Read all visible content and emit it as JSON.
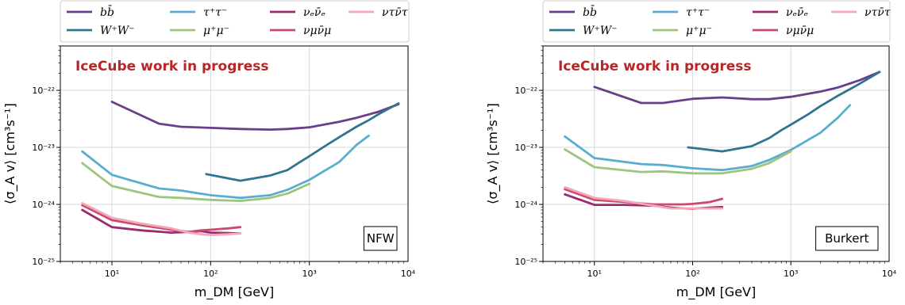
{
  "colors": {
    "bb": "#6b3e8c",
    "WW": "#2f7490",
    "tautau": "#59aed0",
    "mumu": "#9cc57e",
    "nuenue": "#9c2a6e",
    "numunumu": "#c94a6e",
    "nutaunutau": "#f4a7b6",
    "annotation": "#b52828"
  },
  "legend": {
    "entries": [
      {
        "key": "bb",
        "label": "bb̄"
      },
      {
        "key": "WW",
        "label": "W⁺W⁻"
      },
      {
        "key": "tautau",
        "label": "τ⁺τ⁻"
      },
      {
        "key": "mumu",
        "label": "μ⁺μ⁻"
      },
      {
        "key": "nuenue",
        "label": "νₑν̄ₑ"
      },
      {
        "key": "numunumu",
        "label": "νμν̄μ"
      },
      {
        "key": "nutaunutau",
        "label": "ντν̄τ"
      }
    ]
  },
  "chart_data": [
    {
      "type": "line",
      "xlabel": "m_DM [GeV]",
      "ylabel": "⟨σ_A v⟩ [cm³s⁻¹]",
      "xscale": "log",
      "yscale": "log",
      "xlim": [
        3,
        10000
      ],
      "ylim": [
        1e-25,
        6e-22
      ],
      "xticks": [
        "10¹",
        "10²",
        "10³",
        "10⁴"
      ],
      "yticks": [
        "10⁻²⁵",
        "10⁻²⁴",
        "10⁻²³",
        "10⁻²²"
      ],
      "grid": true,
      "annotation": "IceCube work in progress",
      "profile_label": "NFW",
      "series": [
        {
          "key": "bb",
          "x": [
            10,
            30,
            50,
            100,
            200,
            400,
            600,
            1000,
            2000,
            3000,
            5000,
            8000
          ],
          "y": [
            6.3e-23,
            2.6e-23,
            2.3e-23,
            2.2e-23,
            2.1e-23,
            2.05e-23,
            2.1e-23,
            2.25e-23,
            2.8e-23,
            3.3e-23,
            4.2e-23,
            5.7e-23
          ]
        },
        {
          "key": "WW",
          "x": [
            90,
            200,
            400,
            600,
            800,
            1000,
            1500,
            2000,
            3000,
            4000,
            5000,
            8000
          ],
          "y": [
            3.4e-24,
            2.6e-24,
            3.2e-24,
            4e-24,
            5.5e-24,
            7e-24,
            1.1e-23,
            1.5e-23,
            2.3e-23,
            3e-23,
            3.8e-23,
            5.9e-23
          ]
        },
        {
          "key": "tautau",
          "x": [
            5,
            10,
            30,
            50,
            100,
            200,
            400,
            600,
            1000,
            2000,
            3000,
            4000
          ],
          "y": [
            8.5e-24,
            3.3e-24,
            1.9e-24,
            1.75e-24,
            1.45e-24,
            1.3e-24,
            1.45e-24,
            1.8e-24,
            2.7e-24,
            5.5e-24,
            1.1e-23,
            1.6e-23
          ]
        },
        {
          "key": "mumu",
          "x": [
            5,
            10,
            30,
            50,
            100,
            200,
            400,
            600,
            1000
          ],
          "y": [
            5.3e-24,
            2.1e-24,
            1.35e-24,
            1.3e-24,
            1.2e-24,
            1.15e-24,
            1.3e-24,
            1.55e-24,
            2.3e-24
          ]
        },
        {
          "key": "nuenue",
          "x": [
            5,
            10,
            20,
            40,
            60,
            80,
            100,
            150,
            200
          ],
          "y": [
            8e-25,
            4e-25,
            3.5e-25,
            3.2e-25,
            3.3e-25,
            3.4e-25,
            3.2e-25,
            3.15e-25,
            3.1e-25
          ]
        },
        {
          "key": "numunumu",
          "x": [
            5,
            10,
            20,
            40,
            60,
            80,
            100,
            150,
            200
          ],
          "y": [
            9.7e-25,
            5.3e-25,
            4.3e-25,
            3.6e-25,
            3.3e-25,
            3.5e-25,
            3.6e-25,
            3.8e-25,
            4e-25
          ]
        },
        {
          "key": "nutaunutau",
          "x": [
            5,
            10,
            20,
            40,
            60,
            80,
            100,
            150,
            200
          ],
          "y": [
            1.05e-24,
            5.8e-25,
            4.6e-25,
            3.8e-25,
            3.2e-25,
            3e-25,
            2.9e-25,
            3e-25,
            3.1e-25
          ]
        }
      ]
    },
    {
      "type": "line",
      "xlabel": "m_DM [GeV]",
      "ylabel": "⟨σ_A v⟩ [cm³s⁻¹]",
      "xscale": "log",
      "yscale": "log",
      "xlim": [
        3,
        10000
      ],
      "ylim": [
        1e-25,
        6e-22
      ],
      "xticks": [
        "10¹",
        "10²",
        "10³",
        "10⁴"
      ],
      "yticks": [
        "10⁻²⁵",
        "10⁻²⁴",
        "10⁻²³",
        "10⁻²²"
      ],
      "grid": true,
      "annotation": "IceCube work in progress",
      "profile_label": "Burkert",
      "series": [
        {
          "key": "bb",
          "x": [
            10,
            30,
            50,
            100,
            200,
            400,
            600,
            1000,
            2000,
            3000,
            5000,
            8000
          ],
          "y": [
            1.15e-22,
            6e-23,
            6e-23,
            7.1e-23,
            7.5e-23,
            7e-23,
            7e-23,
            7.7e-23,
            9.5e-23,
            1.12e-22,
            1.5e-22,
            2.1e-22
          ]
        },
        {
          "key": "WW",
          "x": [
            90,
            200,
            400,
            600,
            800,
            1000,
            1500,
            2000,
            3000,
            4000,
            5000,
            8000
          ],
          "y": [
            1e-23,
            8.5e-24,
            1.05e-23,
            1.45e-23,
            2e-23,
            2.5e-23,
            3.8e-23,
            5.3e-23,
            8e-23,
            1.05e-22,
            1.3e-22,
            2.1e-22
          ]
        },
        {
          "key": "tautau",
          "x": [
            5,
            10,
            30,
            50,
            100,
            200,
            400,
            600,
            1000,
            2000,
            3000,
            4000
          ],
          "y": [
            1.55e-23,
            6.5e-24,
            5.1e-24,
            4.9e-24,
            4.3e-24,
            4e-24,
            4.7e-24,
            6e-24,
            9e-24,
            1.8e-23,
            3.3e-23,
            5.5e-23
          ]
        },
        {
          "key": "mumu",
          "x": [
            5,
            10,
            30,
            50,
            100,
            200,
            400,
            600,
            1000
          ],
          "y": [
            9.2e-24,
            4.5e-24,
            3.7e-24,
            3.8e-24,
            3.5e-24,
            3.5e-24,
            4.2e-24,
            5.3e-24,
            8.5e-24
          ]
        },
        {
          "key": "nuenue",
          "x": [
            5,
            10,
            20,
            40,
            60,
            80,
            100,
            150,
            200
          ],
          "y": [
            1.5e-24,
            9.8e-25,
            9.8e-25,
            9.5e-25,
            8.8e-25,
            8.5e-25,
            8.4e-25,
            8.8e-25,
            9e-25
          ]
        },
        {
          "key": "numunumu",
          "x": [
            5,
            10,
            20,
            40,
            60,
            80,
            100,
            150,
            200
          ],
          "y": [
            1.85e-24,
            1.2e-24,
            1.1e-24,
            1e-24,
            1e-24,
            1e-24,
            1.02e-24,
            1.1e-24,
            1.25e-24
          ]
        },
        {
          "key": "nutaunutau",
          "x": [
            5,
            10,
            20,
            40,
            60,
            80,
            100,
            150,
            200
          ],
          "y": [
            2e-24,
            1.3e-24,
            1.15e-24,
            9.5e-25,
            8.5e-25,
            8.5e-25,
            8.5e-25,
            8.5e-25,
            8.5e-25
          ]
        }
      ]
    }
  ]
}
